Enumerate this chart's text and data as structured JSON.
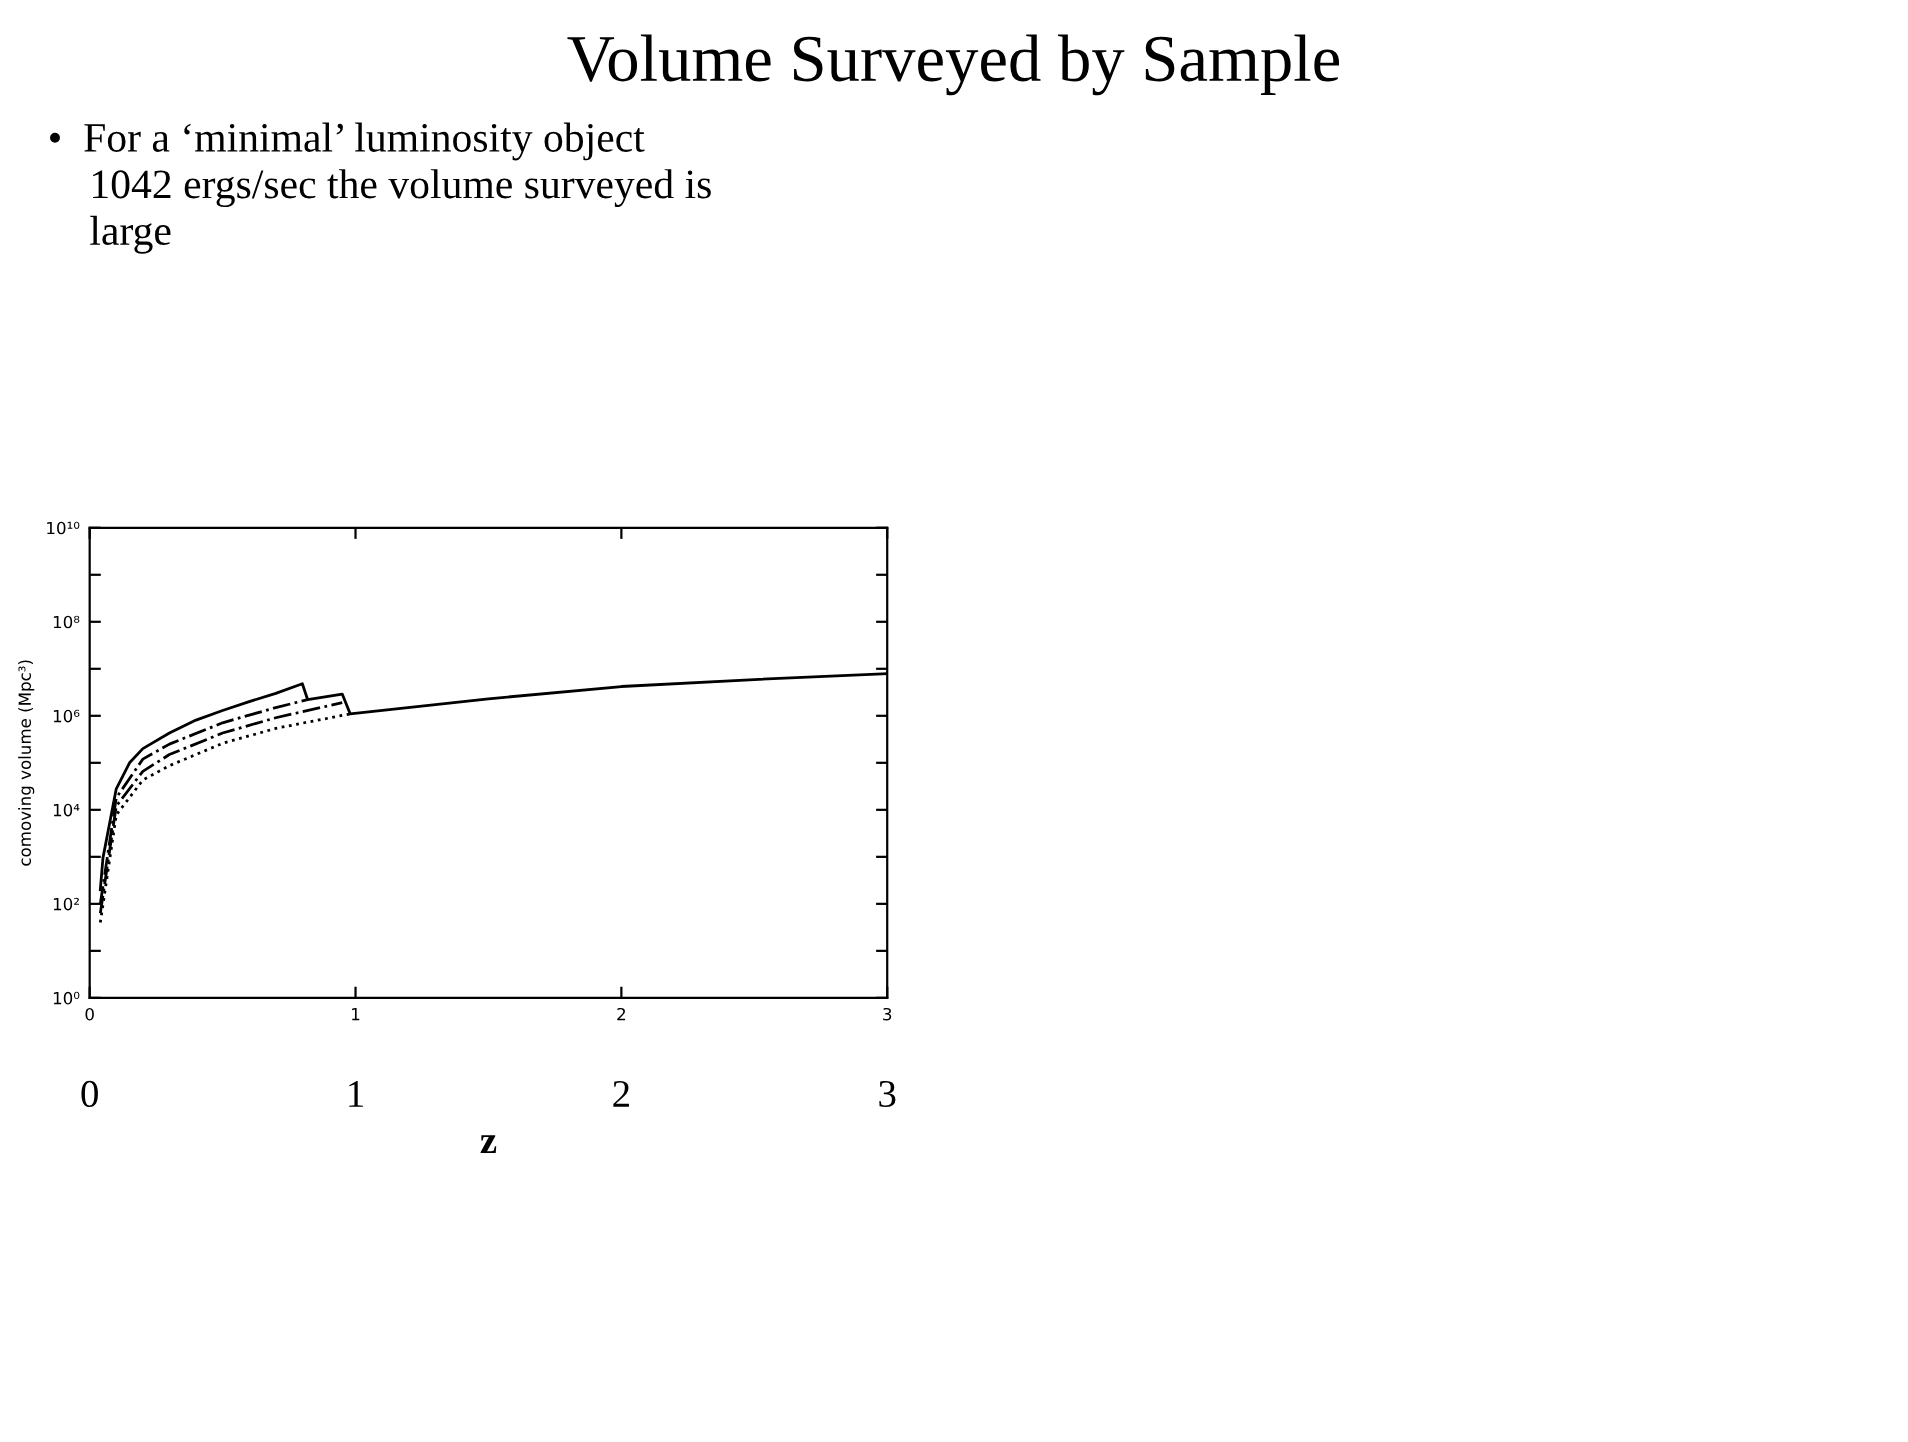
{
  "chart_data": {
    "type": "line",
    "title": "Volume Surveyed by Sample",
    "subtitle": "•  For a ‘minimal’ luminosity object\n    1042 ergs/sec the volume surveyed is\n    large",
    "ylabel": "comoving volume (Mpc³)",
    "xlabel": "z",
    "log": "y",
    "series": [
      {
        "color": "#000000",
        "line_style": "solid",
        "x": [
          0.04,
          0.05,
          0.1,
          0.15,
          0.2,
          0.3,
          0.4,
          0.5,
          0.6,
          0.7,
          0.8,
          0.82,
          0.95,
          0.98,
          1.5,
          2,
          2.5,
          3
        ],
        "values": [
          200,
          950,
          28000,
          100000,
          200000,
          430000,
          810000,
          1300000,
          2000000,
          3000000,
          4800000,
          2200000,
          2900000,
          1100000,
          2300000,
          4200000,
          5900000,
          7900000
        ]
      },
      {
        "color": "#000000",
        "line_style": "dashed",
        "x": [
          0.04,
          0.1,
          0.2,
          0.3,
          0.5,
          0.7,
          0.82
        ],
        "values": [
          100,
          18000,
          120000,
          250000,
          710000,
          1500000,
          2200000
        ]
      },
      {
        "color": "#000000",
        "line_style": "dashed",
        "x": [
          0.04,
          0.1,
          0.2,
          0.3,
          0.5,
          0.7,
          0.95
        ],
        "values": [
          63,
          12000,
          66000,
          150000,
          430000,
          910000,
          1900000
        ]
      },
      {
        "color": "#000000",
        "line_style": "dotted",
        "x": [
          0.04,
          0.1,
          0.2,
          0.3,
          0.5,
          0.7,
          0.98
        ],
        "values": [
          40,
          7800,
          43000,
          87000,
          260000,
          540000,
          1100000
        ]
      }
    ],
    "xlim": [
      0,
      3
    ],
    "xticks": [
      0,
      1,
      2,
      3
    ],
    "x2lim": [
      0,
      3
    ],
    "x2ticks": [
      0,
      1,
      2,
      3
    ],
    "ylim": [
      1,
      10000000000
    ],
    "yticks": [
      {
        "value": 1,
        "label": "10⁰"
      },
      {
        "value": 10,
        "label": null
      },
      {
        "value": 100,
        "label": "10²"
      },
      {
        "value": 1000,
        "label": null
      },
      {
        "value": 10000,
        "label": "10⁴"
      },
      {
        "value": 100000,
        "label": null
      },
      {
        "value": 1000000,
        "label": "10⁶"
      },
      {
        "value": 10000000,
        "label": null
      },
      {
        "value": 100000000,
        "label": "10⁸"
      },
      {
        "value": 1000000000,
        "label": null
      },
      {
        "value": 10000000000,
        "label": "10¹⁰"
      }
    ],
    "grid": false,
    "legend": false,
    "marker": "none"
  }
}
